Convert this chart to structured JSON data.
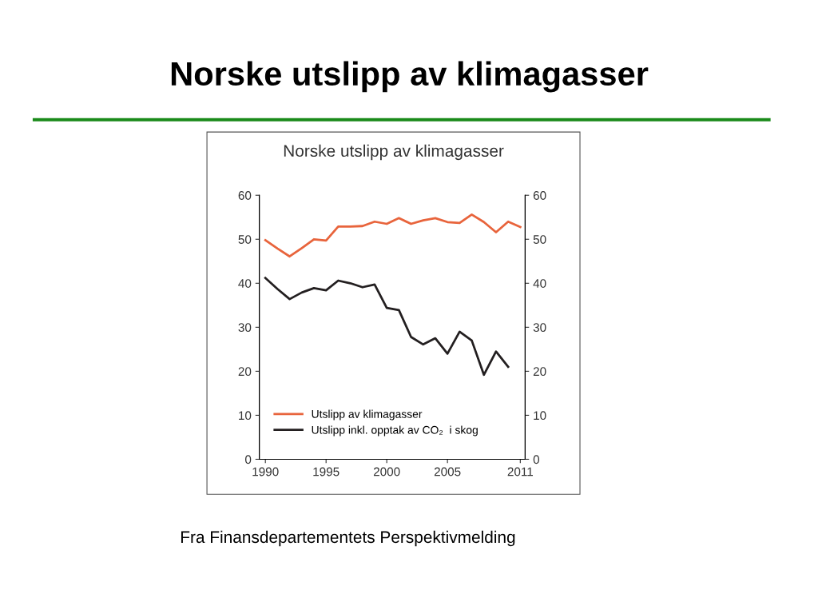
{
  "chart_data": {
    "type": "line",
    "title": "Norske utslipp av klimagasser",
    "subtitle": "Norske utslipp av klimagasser",
    "x": [
      1990,
      1991,
      1992,
      1993,
      1994,
      1995,
      1996,
      1997,
      1998,
      1999,
      2000,
      2001,
      2002,
      2003,
      2004,
      2005,
      2006,
      2007,
      2008,
      2009,
      2010,
      2011
    ],
    "series": [
      {
        "name": "Utslipp av klimagasser",
        "color": "#e8643c",
        "values": [
          49.8,
          47.9,
          46.1,
          48.0,
          50.0,
          49.7,
          52.9,
          52.9,
          53.0,
          54.0,
          53.5,
          54.8,
          53.5,
          54.3,
          54.8,
          53.9,
          53.7,
          55.6,
          53.9,
          51.6,
          54.0,
          52.8
        ]
      },
      {
        "name": "Utslipp inkl. opptak av CO₂  i skog",
        "color": "#231f20",
        "values": [
          41.2,
          38.7,
          36.4,
          37.9,
          38.9,
          38.4,
          40.6,
          40.0,
          39.1,
          39.7,
          34.4,
          33.9,
          27.8,
          26.1,
          27.5,
          24.0,
          29.0,
          27.0,
          19.2,
          24.5,
          21.0,
          null
        ]
      }
    ],
    "xlim": [
      1989.5,
      2011.4
    ],
    "xticks": [
      1990,
      1995,
      2000,
      2005,
      2011
    ],
    "ylim": [
      0,
      60
    ],
    "yticks": [
      0,
      10,
      20,
      30,
      40,
      50,
      60
    ],
    "y2lim": [
      0,
      60
    ],
    "y2ticks": [
      0,
      10,
      20,
      30,
      40,
      50,
      60
    ],
    "legend": "bottom left",
    "grid": false,
    "marker": "none",
    "line_style": "solid",
    "annotations": [
      "Fra Finansdepartementets Perspektivmelding"
    ]
  }
}
